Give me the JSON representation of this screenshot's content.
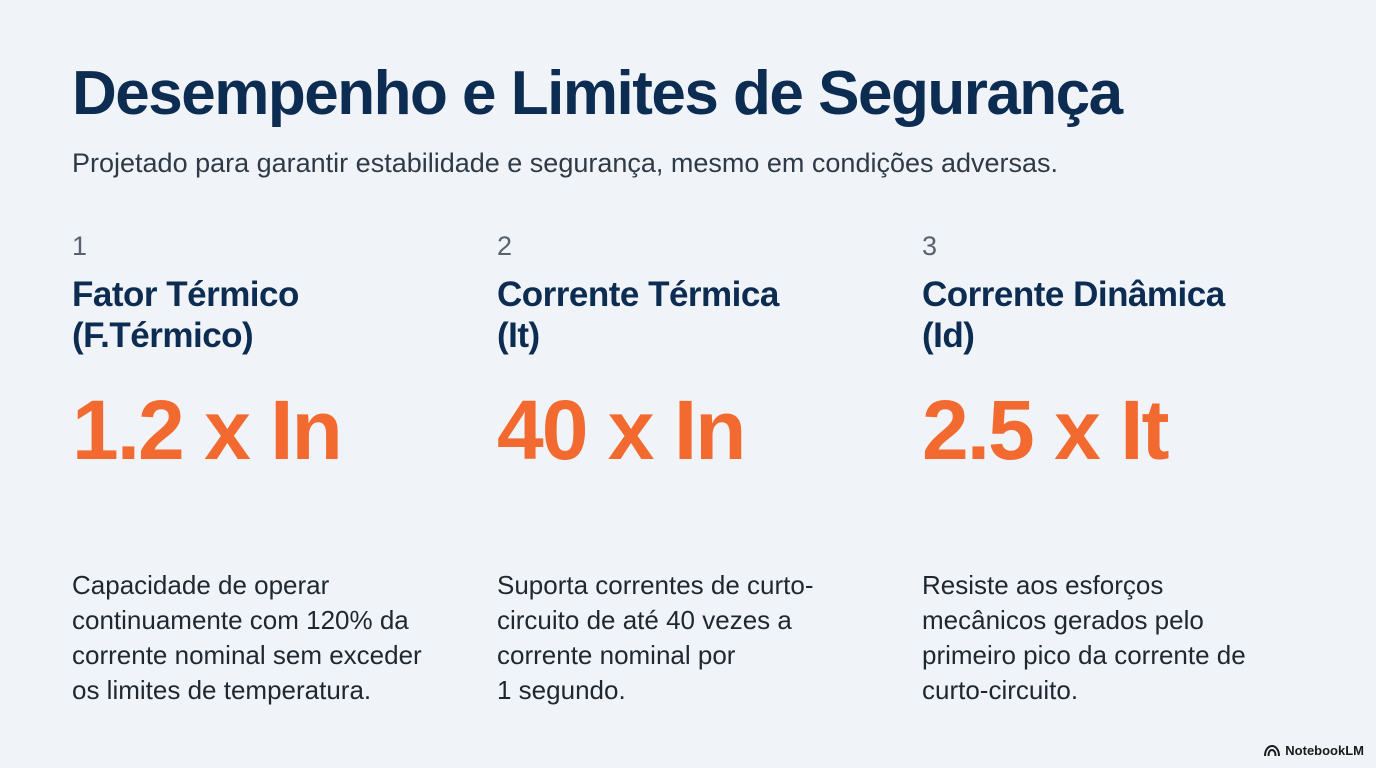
{
  "title": "Desempenho e Limites de Segurança",
  "subtitle": "Projetado para garantir estabilidade e segurança, mesmo em condições adversas.",
  "items": [
    {
      "number": "1",
      "heading_lines": [
        "Fator Térmico",
        "(F.Térmico)"
      ],
      "value": "1.2 x In",
      "description_lines": [
        "Capacidade de operar",
        "continuamente com 120% da",
        "corrente nominal sem exceder",
        "os limites de temperatura."
      ]
    },
    {
      "number": "2",
      "heading_lines": [
        "Corrente Térmica",
        "(It)"
      ],
      "value": "40 x In",
      "description_lines": [
        "Suporta correntes de curto-",
        "circuito de até 40 vezes a",
        "corrente nominal por",
        "1 segundo."
      ]
    },
    {
      "number": "3",
      "heading_lines": [
        "Corrente Dinâmica",
        "(Id)"
      ],
      "value": "2.5 x It",
      "description_lines": [
        "Resiste aos esforços",
        "mecânicos gerados pelo",
        "primeiro pico da corrente de",
        "curto-circuito."
      ]
    }
  ],
  "brand": {
    "label": "NotebookLM",
    "icon": "notebooklm-logo-icon"
  },
  "colors": {
    "background": "#f0f3f7",
    "title": "#0c2c52",
    "accent": "#f26a30",
    "text": "#1f2731"
  }
}
